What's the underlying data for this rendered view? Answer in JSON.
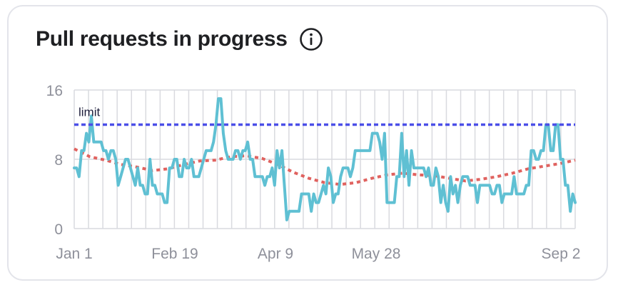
{
  "card": {
    "title": "Pull requests in progress",
    "info_icon": "info-icon"
  },
  "colors": {
    "actual": "#5fc0d3",
    "trend": "#e0625f",
    "limit": "#4b4fe8",
    "grid": "#d9dadf",
    "tick_text": "#8e909a"
  },
  "chart_data": {
    "type": "line",
    "ylim": [
      0,
      16
    ],
    "y_ticks": [
      0,
      8,
      16
    ],
    "x_tick_labels": [
      "Jan 1",
      "Feb 19",
      "Apr 9",
      "May 28",
      "Sep 2"
    ],
    "limit": {
      "label": "limit",
      "value": 12
    },
    "series": [
      {
        "values": [
          7,
          7,
          6,
          9,
          9,
          11,
          10,
          13,
          10,
          10,
          10,
          10,
          9,
          9,
          8,
          9,
          9,
          8,
          5,
          6,
          7,
          8,
          8,
          7,
          6,
          5,
          7,
          5,
          5,
          4,
          4,
          8,
          5,
          5,
          4,
          4,
          4,
          3,
          3,
          7,
          7,
          8,
          8,
          6,
          6,
          8,
          7,
          7,
          8,
          6,
          6,
          6,
          7,
          8,
          9,
          9,
          9,
          10,
          12,
          15,
          15,
          11,
          9,
          8,
          8,
          8,
          9,
          9,
          8,
          9,
          9,
          10,
          8,
          8,
          6,
          6,
          6,
          6,
          5,
          6,
          6,
          7,
          5,
          9,
          7,
          9,
          5,
          1,
          2,
          2,
          2,
          2,
          2,
          4,
          4,
          4,
          4,
          2,
          4,
          3,
          3,
          4,
          5,
          4,
          7,
          6,
          3,
          4,
          4,
          6,
          7,
          7,
          7,
          6,
          7,
          9,
          9,
          9,
          9,
          9,
          9,
          9,
          11,
          11,
          11,
          10,
          8,
          11,
          3,
          3,
          3,
          3,
          6,
          6,
          11,
          6,
          9,
          5,
          9,
          7,
          7,
          7,
          7,
          7,
          6,
          7,
          5,
          5,
          7,
          6,
          3,
          5,
          3,
          2,
          6,
          4,
          5,
          3,
          5,
          6,
          6,
          6,
          5,
          5,
          5,
          3,
          5,
          5,
          5,
          5,
          5,
          4,
          4,
          5,
          5,
          3,
          4,
          4,
          4,
          4,
          6,
          4,
          4,
          4,
          4,
          5,
          5,
          9,
          9,
          8,
          8,
          9,
          9,
          12,
          12,
          9,
          9,
          12,
          12,
          8,
          8,
          5,
          5,
          2,
          4,
          3
        ]
      },
      {
        "values": [
          9.2,
          8.3,
          7.9,
          7.4,
          7.1,
          6.7,
          6.9,
          7.4,
          7.8,
          7.9,
          8.3,
          8.4,
          8.1,
          7.4,
          6.5,
          5.8,
          5.3,
          5.1,
          5.3,
          5.8,
          6.2,
          6.4,
          6.2,
          6.1,
          5.8,
          5.5,
          5.7,
          6.0,
          6.4,
          6.9,
          7.2,
          7.5,
          7.9
        ]
      }
    ]
  }
}
